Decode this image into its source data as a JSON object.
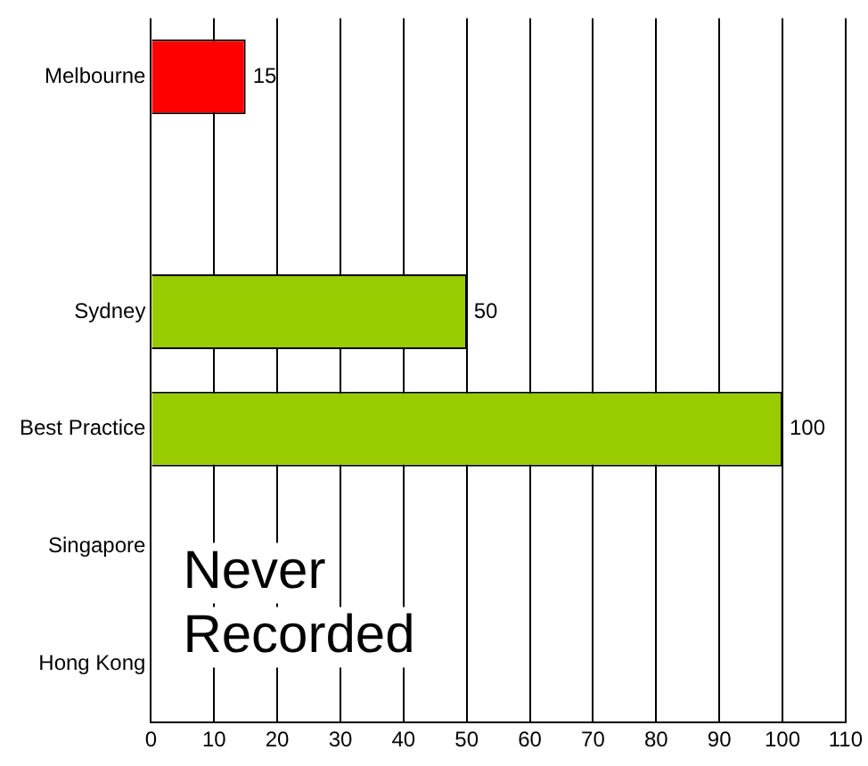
{
  "chart_data": {
    "type": "bar",
    "orientation": "horizontal",
    "categories": [
      "Melbourne",
      null,
      "Sydney",
      "Best Practice",
      "Singapore",
      "Hong Kong"
    ],
    "values": [
      15,
      null,
      50,
      100,
      null,
      null
    ],
    "colors": [
      "#ff0000",
      "#99cc00",
      "#99cc00",
      "#99cc00",
      "#99cc00",
      "#99cc00"
    ],
    "xlim": [
      0,
      110
    ],
    "xticks": [
      0,
      10,
      20,
      30,
      40,
      50,
      60,
      70,
      80,
      90,
      100,
      110
    ],
    "grid": "x",
    "legend": false,
    "data_labels": true,
    "annotations": [
      "Never Recorded"
    ]
  }
}
